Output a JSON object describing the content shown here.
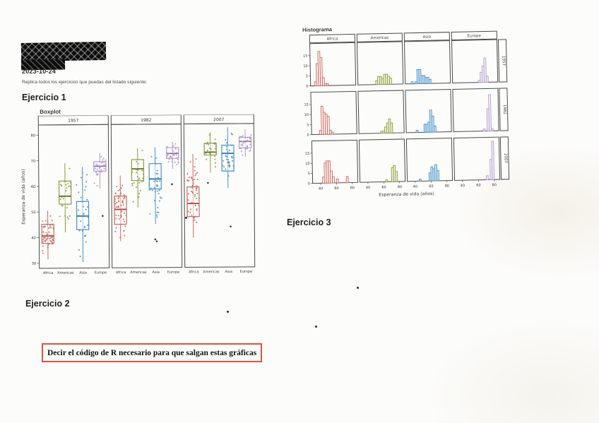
{
  "page": {
    "date": "2023-10-24",
    "instruction": "Replica todos los ejercicios que puedas del listado siguiente:",
    "exercise1": "Ejercicio 1",
    "exercise2": "Ejercicio 2",
    "exercise3": "Ejercicio 3",
    "boxed_note": "Decir el código de R necesario para que salgan estas gráficas"
  },
  "chart_data": [
    {
      "type": "boxplot",
      "title": "Boxplot",
      "ylabel": "Esperanza de vida (años)",
      "facets": [
        "1957",
        "1982",
        "2007"
      ],
      "categories": [
        "Africa",
        "Americas",
        "Asia",
        "Europe"
      ],
      "ylim": [
        28,
        84
      ],
      "yticks": [
        30,
        40,
        50,
        60,
        70,
        80
      ],
      "grid": false,
      "colors": {
        "Africa": {
          "stroke": "#c96a62",
          "fill": "#f9edeb",
          "dark": "#a84439"
        },
        "Americas": {
          "stroke": "#8a9a40",
          "fill": "#f0f2dd",
          "dark": "#5f7022"
        },
        "Asia": {
          "stroke": "#4a90c4",
          "fill": "#d8e9f5",
          "dark": "#2b6da5"
        },
        "Europe": {
          "stroke": "#b299cc",
          "fill": "#f3eef8",
          "dark": "#8a6cab"
        }
      },
      "boxes": {
        "1957": {
          "Africa": {
            "whislo": 31.5,
            "q1": 37.7,
            "med": 40.6,
            "q3": 45.2,
            "whishi": 50.5,
            "n": 52,
            "outliers": []
          },
          "Americas": {
            "whislo": 42.0,
            "q1": 53.0,
            "med": 56.1,
            "q3": 62.0,
            "whishi": 69.0,
            "n": 25,
            "outliers": []
          },
          "Asia": {
            "whislo": 30.3,
            "q1": 43.0,
            "med": 48.3,
            "q3": 54.0,
            "whishi": 67.5,
            "n": 33,
            "outliers": []
          },
          "Europe": {
            "whislo": 59.0,
            "q1": 65.8,
            "med": 67.7,
            "q3": 69.5,
            "whishi": 73.0,
            "n": 30,
            "outliers": [
              48.3
            ]
          }
        },
        "1982": {
          "Africa": {
            "whislo": 38.4,
            "q1": 45.0,
            "med": 50.8,
            "q3": 56.0,
            "whishi": 64.0,
            "n": 52,
            "outliers": []
          },
          "Americas": {
            "whislo": 51.5,
            "q1": 62.0,
            "med": 66.6,
            "q3": 70.2,
            "whishi": 74.6,
            "n": 25,
            "outliers": []
          },
          "Asia": {
            "whislo": 45.0,
            "q1": 58.7,
            "med": 62.6,
            "q3": 68.6,
            "whishi": 75.0,
            "n": 33,
            "outliers": [
              39.0,
              38.2
            ]
          },
          "Europe": {
            "whislo": 66.5,
            "q1": 70.6,
            "med": 72.5,
            "q3": 74.8,
            "whishi": 77.0,
            "n": 30,
            "outliers": [
              60.5
            ]
          }
        },
        "2007": {
          "Africa": {
            "whislo": 39.6,
            "q1": 47.8,
            "med": 52.9,
            "q3": 59.4,
            "whishi": 72.3,
            "n": 52,
            "outliers": []
          },
          "Americas": {
            "whislo": 65.0,
            "q1": 71.8,
            "med": 72.9,
            "q3": 76.4,
            "whishi": 80.7,
            "n": 25,
            "outliers": [
              60.9
            ]
          },
          "Asia": {
            "whislo": 58.9,
            "q1": 65.5,
            "med": 72.4,
            "q3": 75.6,
            "whishi": 82.6,
            "n": 33,
            "outliers": [
              43.8
            ]
          },
          "Europe": {
            "whislo": 71.0,
            "q1": 74.5,
            "med": 77.0,
            "q3": 78.6,
            "whishi": 81.8,
            "n": 30,
            "outliers": []
          }
        }
      }
    },
    {
      "type": "histogram",
      "title": "Histograma",
      "xlabel": "Esperanza de vida (años)",
      "col_facets": [
        "Africa",
        "Americas",
        "Asia",
        "Europe"
      ],
      "row_facets": [
        "1957",
        "1982",
        "2007"
      ],
      "xlim": [
        30,
        87
      ],
      "xticks": [
        40,
        60,
        80
      ],
      "ylim": [
        0,
        21
      ],
      "yticks": [
        0,
        5,
        10,
        15
      ],
      "bin_width": 2.5,
      "grid": false,
      "colors": {
        "Africa": {
          "stroke": "#c96a62",
          "fill": "#fbf1ef"
        },
        "Americas": {
          "stroke": "#8a9a40",
          "fill": "#f0f2dd"
        },
        "Asia": {
          "stroke": "#4a90c4",
          "fill": "#d3e6f4"
        },
        "Europe": {
          "stroke": "#b299cc",
          "fill": "#f5f0f9"
        }
      },
      "cells": {
        "1957": {
          "Africa": [
            [
              35,
              2
            ],
            [
              37.5,
              11
            ],
            [
              40,
              17
            ],
            [
              42.5,
              14
            ],
            [
              45,
              4
            ],
            [
              47.5,
              1
            ],
            [
              50,
              1
            ]
          ],
          "Americas": [
            [
              52.5,
              2
            ],
            [
              55,
              4
            ],
            [
              57.5,
              4
            ],
            [
              60,
              3
            ],
            [
              62.5,
              5
            ],
            [
              65,
              5
            ],
            [
              67.5,
              4
            ],
            [
              70,
              3
            ]
          ],
          "Asia": [
            [
              37.5,
              1
            ],
            [
              42.5,
              1
            ],
            [
              45,
              7
            ],
            [
              47.5,
              7
            ],
            [
              50,
              4
            ],
            [
              52.5,
              4
            ],
            [
              55,
              3
            ],
            [
              57.5,
              3
            ],
            [
              60,
              2
            ]
          ],
          "Europe": [
            [
              62.5,
              1
            ],
            [
              65,
              5
            ],
            [
              67.5,
              8
            ],
            [
              70,
              12
            ],
            [
              72.5,
              3
            ]
          ]
        },
        "1982": {
          "Africa": [
            [
              40,
              2
            ],
            [
              42.5,
              14
            ],
            [
              45,
              11
            ],
            [
              47.5,
              10
            ],
            [
              50,
              9
            ],
            [
              52.5,
              2
            ],
            [
              55,
              1
            ]
          ],
          "Americas": [
            [
              57.5,
              1
            ],
            [
              60,
              1
            ],
            [
              62.5,
              3
            ],
            [
              65,
              5
            ],
            [
              67.5,
              7
            ],
            [
              70,
              5
            ]
          ],
          "Asia": [
            [
              42.5,
              1
            ],
            [
              52.5,
              4
            ],
            [
              55,
              4
            ],
            [
              57.5,
              5
            ],
            [
              60,
              11
            ],
            [
              62.5,
              8
            ],
            [
              65,
              3
            ]
          ],
          "Europe": [
            [
              67.5,
              1
            ],
            [
              72.5,
              11
            ],
            [
              75,
              18
            ],
            [
              77.5,
              1
            ]
          ]
        },
        "2007": {
          "Africa": [
            [
              42.5,
              3
            ],
            [
              45,
              10
            ],
            [
              47.5,
              11
            ],
            [
              50,
              11
            ],
            [
              52.5,
              6
            ],
            [
              55,
              3
            ],
            [
              60,
              2
            ],
            [
              72.5,
              3
            ]
          ],
          "Americas": [
            [
              62.5,
              1
            ],
            [
              70,
              7
            ],
            [
              72.5,
              8
            ],
            [
              75,
              5
            ]
          ],
          "Asia": [
            [
              45,
              1
            ],
            [
              57.5,
              4
            ],
            [
              60,
              7
            ],
            [
              62.5,
              6
            ],
            [
              65,
              8
            ],
            [
              67.5,
              5
            ]
          ],
          "Europe": [
            [
              70,
              2
            ],
            [
              75,
              10
            ],
            [
              77.5,
              19
            ]
          ]
        }
      }
    }
  ]
}
